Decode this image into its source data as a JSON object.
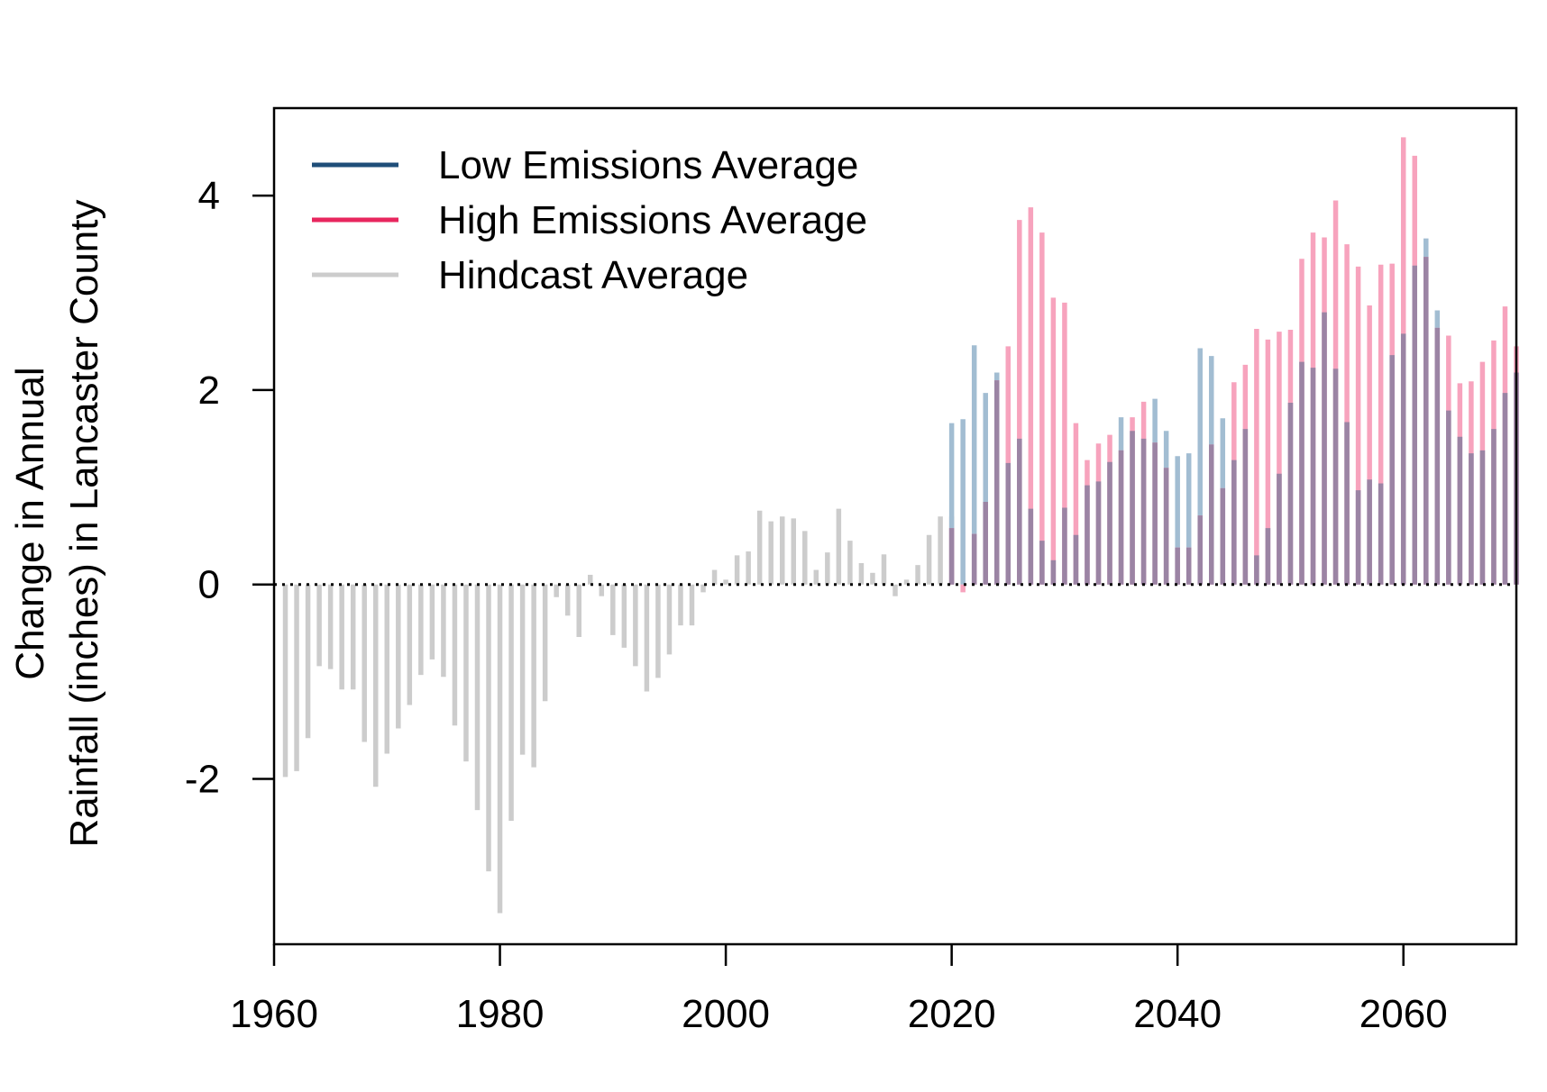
{
  "chart_data": {
    "type": "bar",
    "ylabel_lines": [
      "Change in Annual",
      "Rainfall (inches) in Lancaster County"
    ],
    "xlim": [
      1960,
      2070
    ],
    "ylim": [
      -3.7,
      4.9
    ],
    "x_ticks": [
      1960,
      1980,
      2000,
      2020,
      2040,
      2060
    ],
    "y_ticks": [
      -2,
      0,
      2,
      4
    ],
    "reference_line": {
      "y": 0,
      "style": "dotted"
    },
    "legend": {
      "position": "top-left",
      "entries": [
        {
          "name": "Low Emissions Average",
          "color": "#1f4e79"
        },
        {
          "name": "High Emissions Average",
          "color": "#e8265e"
        },
        {
          "name": "Hindcast Average",
          "color": "#cccccc"
        }
      ]
    },
    "series": [
      {
        "name": "Hindcast Average",
        "color": "#cccccc",
        "x": [
          1961,
          1962,
          1963,
          1964,
          1965,
          1966,
          1967,
          1968,
          1969,
          1970,
          1971,
          1972,
          1973,
          1974,
          1975,
          1976,
          1977,
          1978,
          1979,
          1980,
          1981,
          1982,
          1983,
          1984,
          1985,
          1986,
          1987,
          1988,
          1989,
          1990,
          1991,
          1992,
          1993,
          1994,
          1995,
          1996,
          1997,
          1998,
          1999,
          2000,
          2001,
          2002,
          2003,
          2004,
          2005,
          2006,
          2007,
          2008,
          2009,
          2010,
          2011,
          2012,
          2013,
          2014,
          2015,
          2016,
          2017,
          2018,
          2019,
          2020
        ],
        "values": [
          -1.98,
          -1.92,
          -1.58,
          -0.84,
          -0.87,
          -1.08,
          -1.08,
          -1.62,
          -2.08,
          -1.74,
          -1.48,
          -1.24,
          -0.93,
          -0.77,
          -0.95,
          -1.45,
          -1.82,
          -2.32,
          -2.95,
          -3.38,
          -2.43,
          -1.75,
          -1.88,
          -1.2,
          -0.13,
          -0.32,
          -0.54,
          0.1,
          -0.12,
          -0.52,
          -0.65,
          -0.84,
          -1.1,
          -0.96,
          -0.72,
          -0.42,
          -0.42,
          -0.08,
          0.15,
          0.05,
          0.3,
          0.34,
          0.76,
          0.65,
          0.7,
          0.68,
          0.55,
          0.15,
          0.33,
          0.78,
          0.45,
          0.22,
          0.12,
          0.31,
          -0.12,
          0.05,
          0.2,
          0.51,
          0.7,
          0.7
        ]
      },
      {
        "name": "Low Emissions Average",
        "color": "#1f4e79",
        "x": [
          2020,
          2021,
          2022,
          2023,
          2024,
          2025,
          2026,
          2027,
          2028,
          2029,
          2030,
          2031,
          2032,
          2033,
          2034,
          2035,
          2036,
          2037,
          2038,
          2039,
          2040,
          2041,
          2042,
          2043,
          2044,
          2045,
          2046,
          2047,
          2048,
          2049,
          2050,
          2051,
          2052,
          2053,
          2054,
          2055,
          2056,
          2057,
          2058,
          2059,
          2060,
          2061,
          2062,
          2063,
          2064,
          2065,
          2066,
          2067,
          2068,
          2069,
          2070
        ],
        "values": [
          1.66,
          1.7,
          2.46,
          1.97,
          2.18,
          1.25,
          1.5,
          0.78,
          0.45,
          0.25,
          0.79,
          0.51,
          1.02,
          1.06,
          1.26,
          1.72,
          1.58,
          1.5,
          1.91,
          1.58,
          1.32,
          1.35,
          2.43,
          2.35,
          1.71,
          1.28,
          1.6,
          0.3,
          0.58,
          1.14,
          1.87,
          2.29,
          2.23,
          2.8,
          2.22,
          1.67,
          0.97,
          1.08,
          1.04,
          2.36,
          2.58,
          3.28,
          3.56,
          2.82,
          1.79,
          1.52,
          1.35,
          1.38,
          1.6,
          1.97,
          2.18
        ]
      },
      {
        "name": "High Emissions Average",
        "color": "#e8265e",
        "x": [
          2020,
          2021,
          2022,
          2023,
          2024,
          2025,
          2026,
          2027,
          2028,
          2029,
          2030,
          2031,
          2032,
          2033,
          2034,
          2035,
          2036,
          2037,
          2038,
          2039,
          2040,
          2041,
          2042,
          2043,
          2044,
          2045,
          2046,
          2047,
          2048,
          2049,
          2050,
          2051,
          2052,
          2053,
          2054,
          2055,
          2056,
          2057,
          2058,
          2059,
          2060,
          2061,
          2062,
          2063,
          2064,
          2065,
          2066,
          2067,
          2068,
          2069,
          2070
        ],
        "values": [
          0.58,
          -0.08,
          0.52,
          0.85,
          2.1,
          2.45,
          3.75,
          3.88,
          3.62,
          2.95,
          2.9,
          1.66,
          1.28,
          1.45,
          1.54,
          1.38,
          1.72,
          1.88,
          1.46,
          1.2,
          0.38,
          0.38,
          0.71,
          1.44,
          0.99,
          2.08,
          2.26,
          2.63,
          2.52,
          2.6,
          2.62,
          3.35,
          3.62,
          3.57,
          3.95,
          3.5,
          3.27,
          2.87,
          3.29,
          3.3,
          4.6,
          4.41,
          3.37,
          2.64,
          2.56,
          2.07,
          2.09,
          2.29,
          2.51,
          2.86,
          2.45
        ]
      }
    ]
  }
}
